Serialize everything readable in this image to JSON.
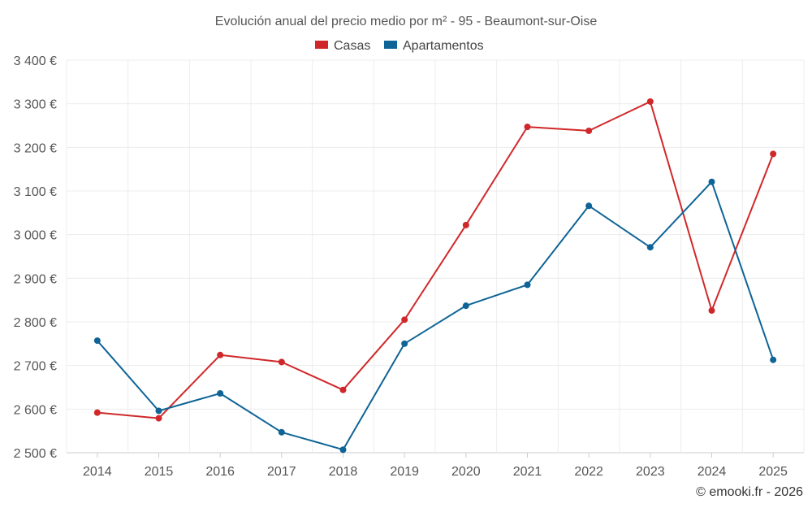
{
  "chart_data": {
    "type": "line",
    "title": "Evolución anual del precio medio por m² - 95 - Beaumont-sur-Oise",
    "categories": [
      "2014",
      "2015",
      "2016",
      "2017",
      "2018",
      "2019",
      "2020",
      "2021",
      "2022",
      "2023",
      "2024",
      "2025"
    ],
    "series": [
      {
        "name": "Casas",
        "color": "#d0282a",
        "values": [
          2592,
          2579,
          2724,
          2708,
          2644,
          2805,
          3022,
          3247,
          3238,
          3305,
          2826,
          3185
        ]
      },
      {
        "name": "Apartamentos",
        "color": "#0e6496",
        "values": [
          2757,
          2596,
          2636,
          2547,
          2507,
          2750,
          2837,
          2885,
          3066,
          2971,
          3121,
          2713
        ]
      }
    ],
    "ylim": [
      2500,
      3400
    ],
    "yticks": [
      2500,
      2600,
      2700,
      2800,
      2900,
      3000,
      3100,
      3200,
      3300,
      3400
    ],
    "ytick_labels": [
      "2 500 €",
      "2 600 €",
      "2 700 €",
      "2 800 €",
      "2 900 €",
      "3 000 €",
      "3 100 €",
      "3 200 €",
      "3 300 €",
      "3 400 €"
    ],
    "xlabel": "",
    "ylabel": "",
    "grid": true,
    "legend": "top-center"
  },
  "credit": "© emooki.fr - 2026"
}
